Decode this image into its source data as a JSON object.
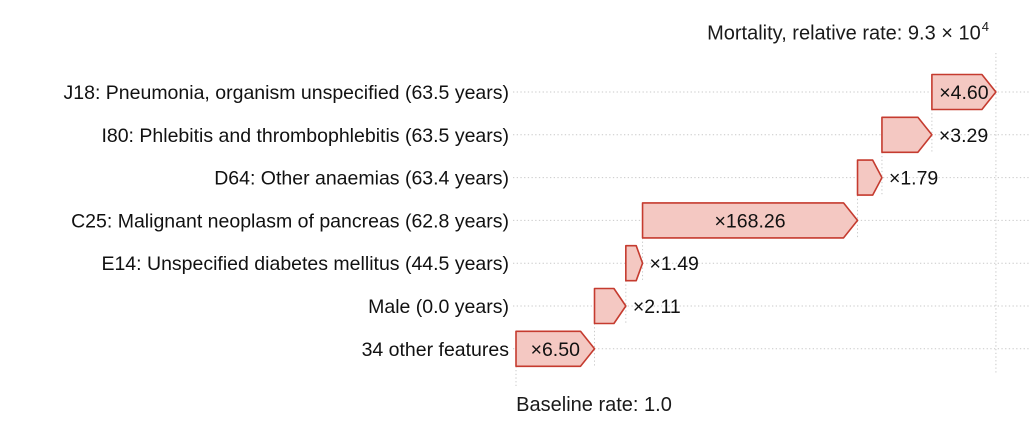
{
  "chart_data": {
    "type": "waterfall",
    "orientation": "horizontal",
    "scale": "log10",
    "title_prefix": "Mortality, relative rate: 9.3 × 10",
    "title_exponent": "4",
    "title_full": "Mortality, relative rate: 9.3 × 10^4",
    "baseline_label": "Baseline rate: 1.0",
    "baseline_value": 1.0,
    "final_value_display": "9.3 × 10^4",
    "rows": [
      {
        "label": "J18: Pneumonia, organism unspecified (63.5 years)",
        "multiplier": 4.6,
        "value_display": "×4.60"
      },
      {
        "label": "I80: Phlebitis and thrombophlebitis (63.5 years)",
        "multiplier": 3.29,
        "value_display": "×3.29"
      },
      {
        "label": "D64: Other anaemias (63.4 years)",
        "multiplier": 1.79,
        "value_display": "×1.79"
      },
      {
        "label": "C25: Malignant neoplasm of pancreas (62.8 years)",
        "multiplier": 168.26,
        "value_display": "×168.26"
      },
      {
        "label": "E14: Unspecified diabetes mellitus (44.5 years)",
        "multiplier": 1.49,
        "value_display": "×1.49"
      },
      {
        "label": "Male (0.0 years)",
        "multiplier": 2.11,
        "value_display": "×2.11"
      },
      {
        "label": "34 other features",
        "multiplier": 6.5,
        "value_display": "×6.50"
      }
    ],
    "colors": {
      "bar_fill": "#f4c8c2",
      "bar_border": "#c53b2f",
      "grid_dotted": "#c9c9c9",
      "text": "#111111"
    },
    "layout_hints": {
      "grid": "dotted horizontal per row, dotted vertical connectors at step boundaries",
      "legend": "none"
    }
  }
}
